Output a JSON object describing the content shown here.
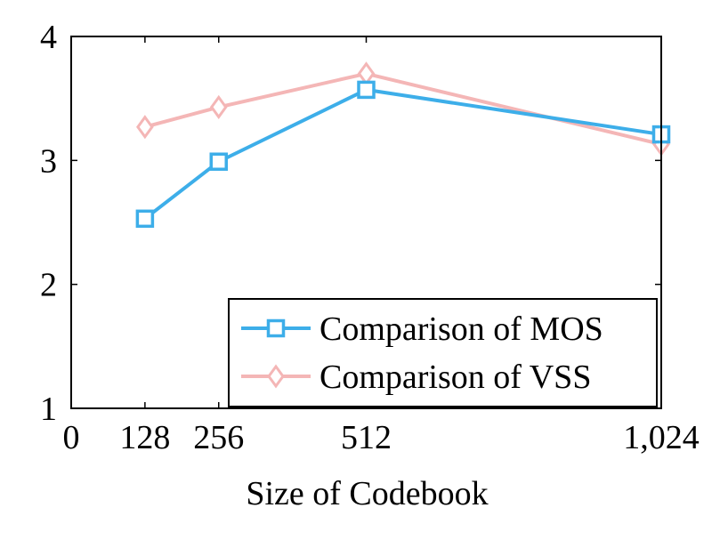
{
  "chart_data": {
    "type": "line",
    "title": "",
    "xlabel": "Size of Codebook",
    "ylabel": "",
    "xlim": [
      0,
      1024
    ],
    "ylim": [
      1,
      4
    ],
    "x": [
      128,
      256,
      512,
      1024
    ],
    "x_ticks": [
      0,
      128,
      256,
      512,
      1024
    ],
    "x_tick_labels": [
      "0",
      "128",
      "256",
      "512",
      "1,024"
    ],
    "y_ticks": [
      1,
      2,
      3,
      4
    ],
    "y_tick_labels": [
      "1",
      "2",
      "3",
      "4"
    ],
    "grid": false,
    "legend_position": "bottom-right",
    "series": [
      {
        "name": "Comparison of MOS",
        "values": [
          2.53,
          2.99,
          3.57,
          3.21
        ],
        "color": "#3daee9",
        "marker": "square"
      },
      {
        "name": "Comparison of VSS",
        "values": [
          3.27,
          3.43,
          3.7,
          3.13
        ],
        "color": "#f4b6b6",
        "marker": "diamond"
      }
    ]
  }
}
